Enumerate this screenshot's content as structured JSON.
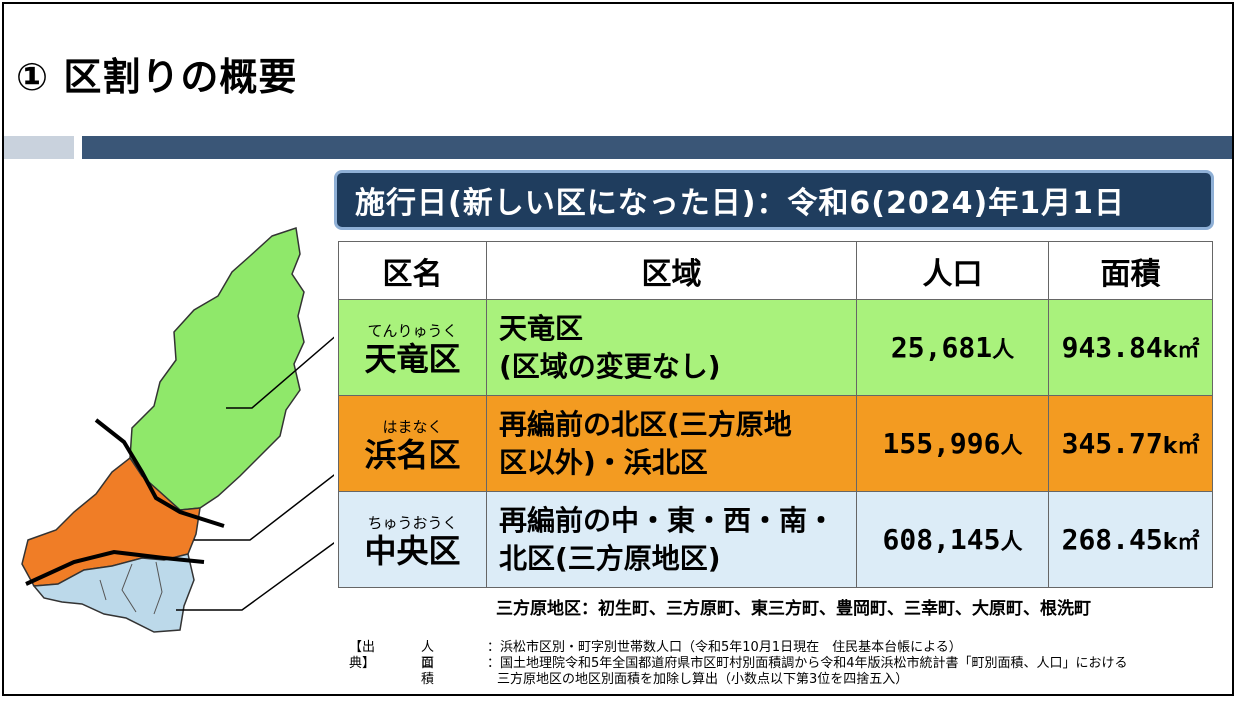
{
  "title": "① 区割りの概要",
  "effective_date": "施行日(新しい区になった日)：令和6(2024)年1月1日",
  "table": {
    "headers": [
      "区名",
      "区域",
      "人口",
      "面積"
    ],
    "rows": [
      {
        "ruby": "てんりゅうく",
        "name": "天竜区",
        "area_line1": "天竜区",
        "area_line2": "(区域の変更なし)",
        "population": "25,681",
        "pop_unit": "人",
        "size": "943.84",
        "size_unit": "k㎡",
        "color": "#a9f27c"
      },
      {
        "ruby": "はまなく",
        "name": "浜名区",
        "area_line1": "再編前の北区(三方原地",
        "area_line2": "区以外)・浜北区",
        "population": "155,996",
        "pop_unit": "人",
        "size": "345.77",
        "size_unit": "k㎡",
        "color": "#f39b21"
      },
      {
        "ruby": "ちゅうおうく",
        "name": "中央区",
        "area_line1": "再編前の中・東・西・南・",
        "area_line2": "北区(三方原地区)",
        "population": "608,145",
        "pop_unit": "人",
        "size": "268.45",
        "size_unit": "k㎡",
        "color": "#dcecf7"
      }
    ]
  },
  "mikatahara_note": "三方原地区：初生町、三方原町、東三方町、豊岡町、三幸町、大原町、根洗町",
  "sources": {
    "heading": "【出典】",
    "pop_label": "人口",
    "area_label": "面積",
    "pop_text": "：浜松市区別・町字別世帯数人口（令和5年10月1日現在　住民基本台帳による）",
    "area_text1": "：国土地理院令和5年全国都道府県市区町村別面積調から令和4年版浜松市統計書「町別面積、人口」における",
    "area_text2": "三方原地区の地区別面積を加除し算出（小数点以下第3位を四捨五入）"
  }
}
